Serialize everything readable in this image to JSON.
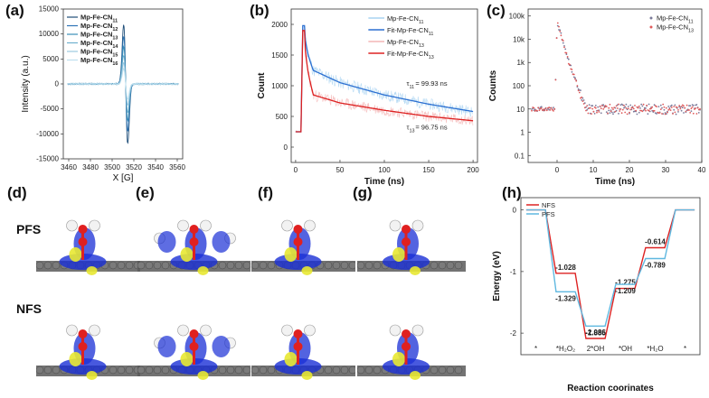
{
  "panels": {
    "a": "(a)",
    "b": "(b)",
    "c": "(c)",
    "d": "(d)",
    "e": "(e)",
    "f": "(f)",
    "g": "(g)",
    "h": "(h)"
  },
  "mol_labels": {
    "pfs": "PFS",
    "nfs": "NFS"
  },
  "colors": {
    "a_series": [
      "#1f4e79",
      "#2e75b6",
      "#3a8fb7",
      "#6fb0cf",
      "#9cc9e0",
      "#bfe0ee"
    ],
    "b_raw11": "#a9d4f2",
    "b_fit11": "#2b6fd1",
    "b_raw13": "#f4b6b6",
    "b_fit13": "#dd2222",
    "c_s1": "#7a7a9a",
    "c_s2": "#e05a5a",
    "h_nfs": "#dd2222",
    "h_pfs": "#5fb8e0",
    "isosurface_blue": "#1a2fd6",
    "isosurface_yellow": "#e8e832",
    "graphene": "#5a5a5a"
  },
  "chart_data": [
    {
      "id": "a",
      "type": "line",
      "xlabel": "X [G]",
      "ylabel": "Intensity (a.u.)",
      "xlim": [
        3455,
        3565
      ],
      "ylim": [
        -15000,
        15000
      ],
      "xticks": [
        3460,
        3480,
        3500,
        3520,
        3540,
        3560
      ],
      "yticks": [
        -15000,
        -10000,
        -5000,
        0,
        5000,
        10000,
        15000
      ],
      "legend_position": "top-left",
      "center": 3512.5,
      "series": [
        {
          "name": "Mp-Fe-CN",
          "sub": "11",
          "peak": 12000,
          "trough": -12300
        },
        {
          "name": "Mp-Fe-CN",
          "sub": "12",
          "peak": 9500,
          "trough": -9800
        },
        {
          "name": "Mp-Fe-CN",
          "sub": "13",
          "peak": 7500,
          "trough": -7600
        },
        {
          "name": "Mp-Fe-CN",
          "sub": "14",
          "peak": 5800,
          "trough": -6000
        },
        {
          "name": "Mp-Fe-CN",
          "sub": "15",
          "peak": 4200,
          "trough": -4400
        },
        {
          "name": "Mp-Fe-CN",
          "sub": "16",
          "peak": 3000,
          "trough": -3200
        }
      ]
    },
    {
      "id": "b",
      "type": "line",
      "xlabel": "Time (ns)",
      "ylabel": "Count",
      "xlim": [
        -5,
        205
      ],
      "ylim": [
        -250,
        2250
      ],
      "xticks": [
        0,
        50,
        100,
        150,
        200
      ],
      "yticks": [
        0,
        500,
        1000,
        1500,
        2000
      ],
      "legend_position": "top-right",
      "series": [
        {
          "name": "Mp-Fe-CN",
          "sub": "11",
          "kind": "raw"
        },
        {
          "name": "Fit-Mp-Fe-CN",
          "sub": "11",
          "kind": "fit"
        },
        {
          "name": "Mp-Fe-CN",
          "sub": "13",
          "kind": "raw"
        },
        {
          "name": "Fit-Mp-Fe-CN",
          "sub": "13",
          "kind": "fit"
        }
      ],
      "fit11": {
        "peak": 1980,
        "at": 10,
        "values_at": [
          [
            20,
            1250
          ],
          [
            50,
            1050
          ],
          [
            100,
            850
          ],
          [
            150,
            700
          ],
          [
            200,
            580
          ]
        ]
      },
      "fit13": {
        "peak": 1900,
        "at": 10,
        "values_at": [
          [
            20,
            850
          ],
          [
            50,
            720
          ],
          [
            100,
            600
          ],
          [
            150,
            500
          ],
          [
            200,
            430
          ]
        ]
      },
      "annotations": [
        {
          "label": "τ",
          "sub": "11",
          "text": "= 99.93 ns"
        },
        {
          "label": "τ",
          "sub": "13",
          "text": "= 96.75 ns"
        }
      ]
    },
    {
      "id": "c",
      "type": "scatter",
      "xlabel": "Time (ns)",
      "ylabel": "Counts",
      "xlim": [
        -8,
        40
      ],
      "ylim_log10": [
        -1.3,
        5.3
      ],
      "log_y": true,
      "xticks": [
        0,
        10,
        20,
        30,
        40
      ],
      "yticks": [
        "0.1",
        "1",
        "10",
        "100",
        "1k",
        "10k",
        "100k"
      ],
      "legend_position": "top-right",
      "series": [
        {
          "name": "Mp-Fe-CN",
          "sub": "11"
        },
        {
          "name": "Mp-Fe-CN",
          "sub": "13"
        }
      ],
      "baseline": 10,
      "peak": 60000,
      "peak_at": 0
    },
    {
      "id": "h",
      "type": "line",
      "xlabel": "Reaction coorinates",
      "ylabel": "Energy (eV)",
      "ylim": [
        -2.35,
        0.2
      ],
      "yticks": [
        0,
        -1,
        -2
      ],
      "legend_position": "top-left",
      "categories": [
        "*",
        "*H₂O₂",
        "2*OH",
        "*OH",
        "*H₂O",
        "*"
      ],
      "series": [
        {
          "name": "NFS",
          "values": [
            0,
            -1.028,
            -2.086,
            -1.275,
            -0.614,
            0
          ]
        },
        {
          "name": "PFS",
          "values": [
            0,
            -1.329,
            -1.885,
            -1.209,
            -0.789,
            0
          ]
        }
      ],
      "data_labels": {
        "NFS": [
          "",
          "-1.028",
          "-2.086",
          "-1.275",
          "-0.614",
          ""
        ],
        "PFS": [
          "",
          "-1.329",
          "-1.885",
          "-1.209",
          "-0.789",
          ""
        ]
      }
    }
  ]
}
